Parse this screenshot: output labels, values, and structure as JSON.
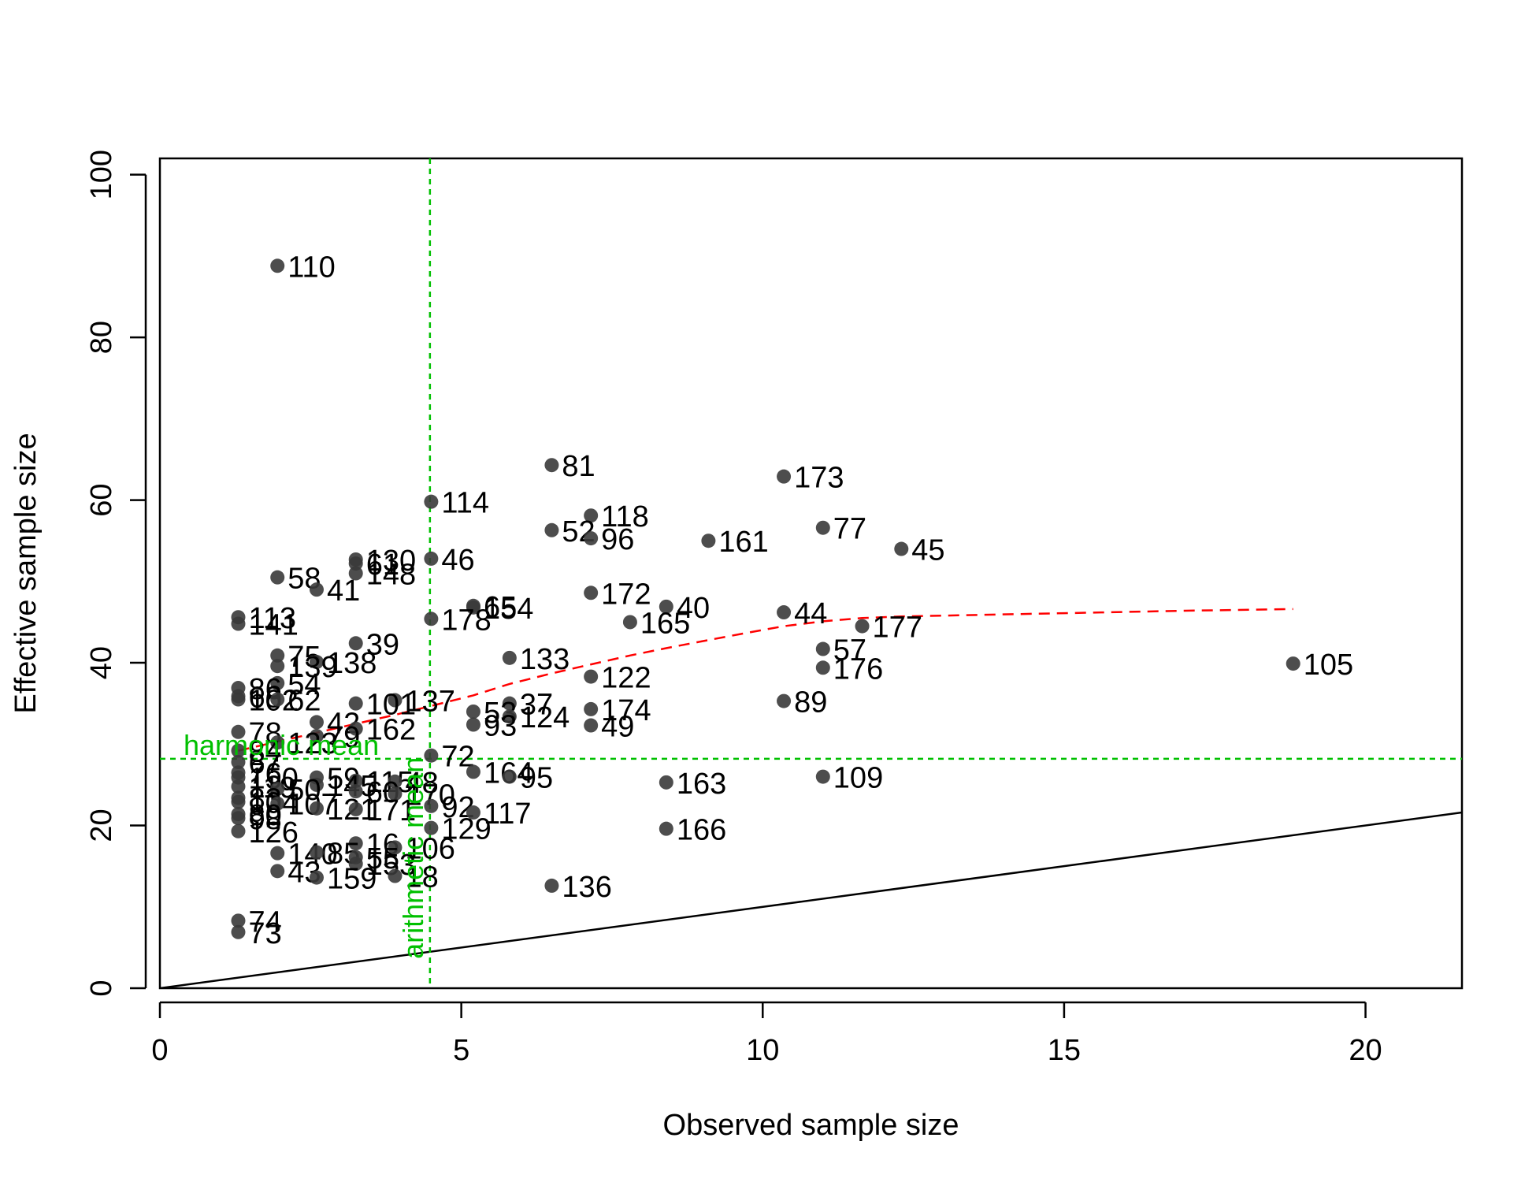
{
  "chart_data": {
    "type": "scatter",
    "title": "",
    "xlabel": "Observed sample size",
    "ylabel": "Effective sample size",
    "xlim": [
      0,
      21.6
    ],
    "ylim": [
      0,
      102
    ],
    "xticks": [
      0,
      5,
      10,
      15,
      20
    ],
    "yticks": [
      0,
      20,
      40,
      60,
      80,
      100
    ],
    "grid": false,
    "colors": {
      "points": "#3a3a3a",
      "reference_lines": "#00c000",
      "trend": "#ff0000",
      "identity": "#000000"
    },
    "points": [
      {
        "label": "110",
        "x": 1.95,
        "y": 88.8
      },
      {
        "label": "81",
        "x": 6.5,
        "y": 64.3
      },
      {
        "label": "173",
        "x": 10.35,
        "y": 62.9
      },
      {
        "label": "114",
        "x": 4.5,
        "y": 59.8
      },
      {
        "label": "118",
        "x": 7.15,
        "y": 58.1
      },
      {
        "label": "77",
        "x": 11.0,
        "y": 56.6
      },
      {
        "label": "52",
        "x": 6.5,
        "y": 56.3
      },
      {
        "label": "96",
        "x": 7.15,
        "y": 55.3
      },
      {
        "label": "161",
        "x": 9.1,
        "y": 55.0
      },
      {
        "label": "45",
        "x": 12.3,
        "y": 54.0
      },
      {
        "label": "46",
        "x": 4.5,
        "y": 52.8
      },
      {
        "label": "130",
        "x": 3.25,
        "y": 52.7
      },
      {
        "label": "61",
        "x": 3.25,
        "y": 52.2
      },
      {
        "label": "148",
        "x": 3.25,
        "y": 51.0
      },
      {
        "label": "58",
        "x": 1.95,
        "y": 50.5
      },
      {
        "label": "41",
        "x": 2.6,
        "y": 49.0
      },
      {
        "label": "172",
        "x": 7.15,
        "y": 48.6
      },
      {
        "label": "65",
        "x": 5.2,
        "y": 47.0
      },
      {
        "label": "154",
        "x": 5.2,
        "y": 46.8
      },
      {
        "label": "40",
        "x": 8.4,
        "y": 46.9
      },
      {
        "label": "44",
        "x": 10.35,
        "y": 46.2
      },
      {
        "label": "113",
        "x": 1.3,
        "y": 45.6
      },
      {
        "label": "178",
        "x": 4.5,
        "y": 45.4
      },
      {
        "label": "165",
        "x": 7.8,
        "y": 45.0
      },
      {
        "label": "141",
        "x": 1.3,
        "y": 44.8
      },
      {
        "label": "177",
        "x": 11.65,
        "y": 44.5
      },
      {
        "label": "39",
        "x": 3.25,
        "y": 42.4
      },
      {
        "label": "57",
        "x": 11.0,
        "y": 41.7
      },
      {
        "label": "75",
        "x": 1.95,
        "y": 40.9
      },
      {
        "label": "133",
        "x": 5.8,
        "y": 40.6
      },
      {
        "label": "138",
        "x": 2.6,
        "y": 40.1
      },
      {
        "label": "105",
        "x": 18.8,
        "y": 39.9
      },
      {
        "label": "139",
        "x": 1.95,
        "y": 39.6
      },
      {
        "label": "176",
        "x": 11.0,
        "y": 39.4
      },
      {
        "label": "122",
        "x": 7.15,
        "y": 38.3
      },
      {
        "label": "54",
        "x": 1.95,
        "y": 37.5
      },
      {
        "label": "86",
        "x": 1.3,
        "y": 36.9
      },
      {
        "label": "68",
        "x": 1.3,
        "y": 35.9
      },
      {
        "label": "102",
        "x": 1.3,
        "y": 35.5
      },
      {
        "label": "62",
        "x": 1.95,
        "y": 35.5
      },
      {
        "label": "137",
        "x": 3.9,
        "y": 35.4
      },
      {
        "label": "89",
        "x": 10.35,
        "y": 35.3
      },
      {
        "label": "101",
        "x": 3.25,
        "y": 35.0
      },
      {
        "label": "37",
        "x": 5.8,
        "y": 35.0
      },
      {
        "label": "174",
        "x": 7.15,
        "y": 34.3
      },
      {
        "label": "53",
        "x": 5.2,
        "y": 34.0
      },
      {
        "label": "124",
        "x": 5.8,
        "y": 33.4
      },
      {
        "label": "93",
        "x": 5.2,
        "y": 32.4
      },
      {
        "label": "49",
        "x": 7.15,
        "y": 32.3
      },
      {
        "label": "42",
        "x": 2.6,
        "y": 32.7
      },
      {
        "label": "162",
        "x": 3.25,
        "y": 31.9
      },
      {
        "label": "78",
        "x": 1.3,
        "y": 31.5
      },
      {
        "label": "79",
        "x": 2.6,
        "y": 31.0
      },
      {
        "label": "123",
        "x": 1.95,
        "y": 30.2
      },
      {
        "label": "84",
        "x": 1.3,
        "y": 29.2
      },
      {
        "label": "72",
        "x": 4.5,
        "y": 28.6
      },
      {
        "label": "67",
        "x": 1.3,
        "y": 27.8
      },
      {
        "label": "164",
        "x": 5.2,
        "y": 26.6
      },
      {
        "label": "76",
        "x": 1.3,
        "y": 26.5
      },
      {
        "label": "109",
        "x": 11.0,
        "y": 26.0
      },
      {
        "label": "95",
        "x": 5.8,
        "y": 26.0
      },
      {
        "label": "150",
        "x": 1.3,
        "y": 25.9
      },
      {
        "label": "59",
        "x": 2.6,
        "y": 25.9
      },
      {
        "label": "115",
        "x": 3.25,
        "y": 25.5
      },
      {
        "label": "48",
        "x": 3.9,
        "y": 25.4
      },
      {
        "label": "163",
        "x": 8.4,
        "y": 25.3
      },
      {
        "label": "145",
        "x": 2.6,
        "y": 25.0
      },
      {
        "label": "119",
        "x": 1.3,
        "y": 24.8
      },
      {
        "label": "50",
        "x": 1.95,
        "y": 24.5
      },
      {
        "label": "60",
        "x": 3.25,
        "y": 24.2
      },
      {
        "label": "170",
        "x": 3.9,
        "y": 23.9
      },
      {
        "label": "83",
        "x": 1.3,
        "y": 23.4
      },
      {
        "label": "104",
        "x": 1.3,
        "y": 22.9
      },
      {
        "label": "107",
        "x": 1.95,
        "y": 22.7
      },
      {
        "label": "92",
        "x": 4.5,
        "y": 22.4
      },
      {
        "label": "121",
        "x": 2.6,
        "y": 22.1
      },
      {
        "label": "171",
        "x": 3.25,
        "y": 22.0
      },
      {
        "label": "117",
        "x": 5.2,
        "y": 21.6
      },
      {
        "label": "80",
        "x": 1.3,
        "y": 21.4
      },
      {
        "label": "98",
        "x": 1.3,
        "y": 20.9
      },
      {
        "label": "129",
        "x": 4.5,
        "y": 19.7
      },
      {
        "label": "166",
        "x": 8.4,
        "y": 19.6
      },
      {
        "label": "126",
        "x": 1.3,
        "y": 19.3
      },
      {
        "label": "16",
        "x": 3.25,
        "y": 17.8
      },
      {
        "label": "106",
        "x": 3.9,
        "y": 17.3
      },
      {
        "label": "140",
        "x": 1.95,
        "y": 16.6
      },
      {
        "label": "85",
        "x": 2.6,
        "y": 16.7
      },
      {
        "label": "55",
        "x": 3.25,
        "y": 16.1
      },
      {
        "label": "153",
        "x": 3.25,
        "y": 15.3
      },
      {
        "label": "43",
        "x": 1.95,
        "y": 14.4
      },
      {
        "label": "159",
        "x": 2.6,
        "y": 13.6
      },
      {
        "label": "18",
        "x": 3.9,
        "y": 13.8
      },
      {
        "label": "136",
        "x": 6.5,
        "y": 12.6
      },
      {
        "label": "74",
        "x": 1.3,
        "y": 8.3
      },
      {
        "label": "73",
        "x": 1.3,
        "y": 6.9
      }
    ],
    "trend_line": {
      "x": [
        1.3,
        1.95,
        2.6,
        3.25,
        3.9,
        4.5,
        5.2,
        5.8,
        6.5,
        7.15,
        7.8,
        8.4,
        9.1,
        9.75,
        10.35,
        11.0,
        11.65,
        12.3,
        13.0,
        15.0,
        17.0,
        18.8
      ],
      "y": [
        29.2,
        30.3,
        31.4,
        32.5,
        33.6,
        34.7,
        36.0,
        37.4,
        38.7,
        39.8,
        40.9,
        41.8,
        42.8,
        43.7,
        44.5,
        45.1,
        45.5,
        45.7,
        45.8,
        46.1,
        46.4,
        46.6
      ]
    },
    "identity_line": {
      "x": [
        0,
        21.6
      ],
      "y": [
        0,
        21.6
      ]
    },
    "reference_lines": {
      "vertical": {
        "x": 4.48,
        "label": "arithmetic mean"
      },
      "horizontal": {
        "y": 28.2,
        "label": "harmonic mean"
      }
    }
  }
}
